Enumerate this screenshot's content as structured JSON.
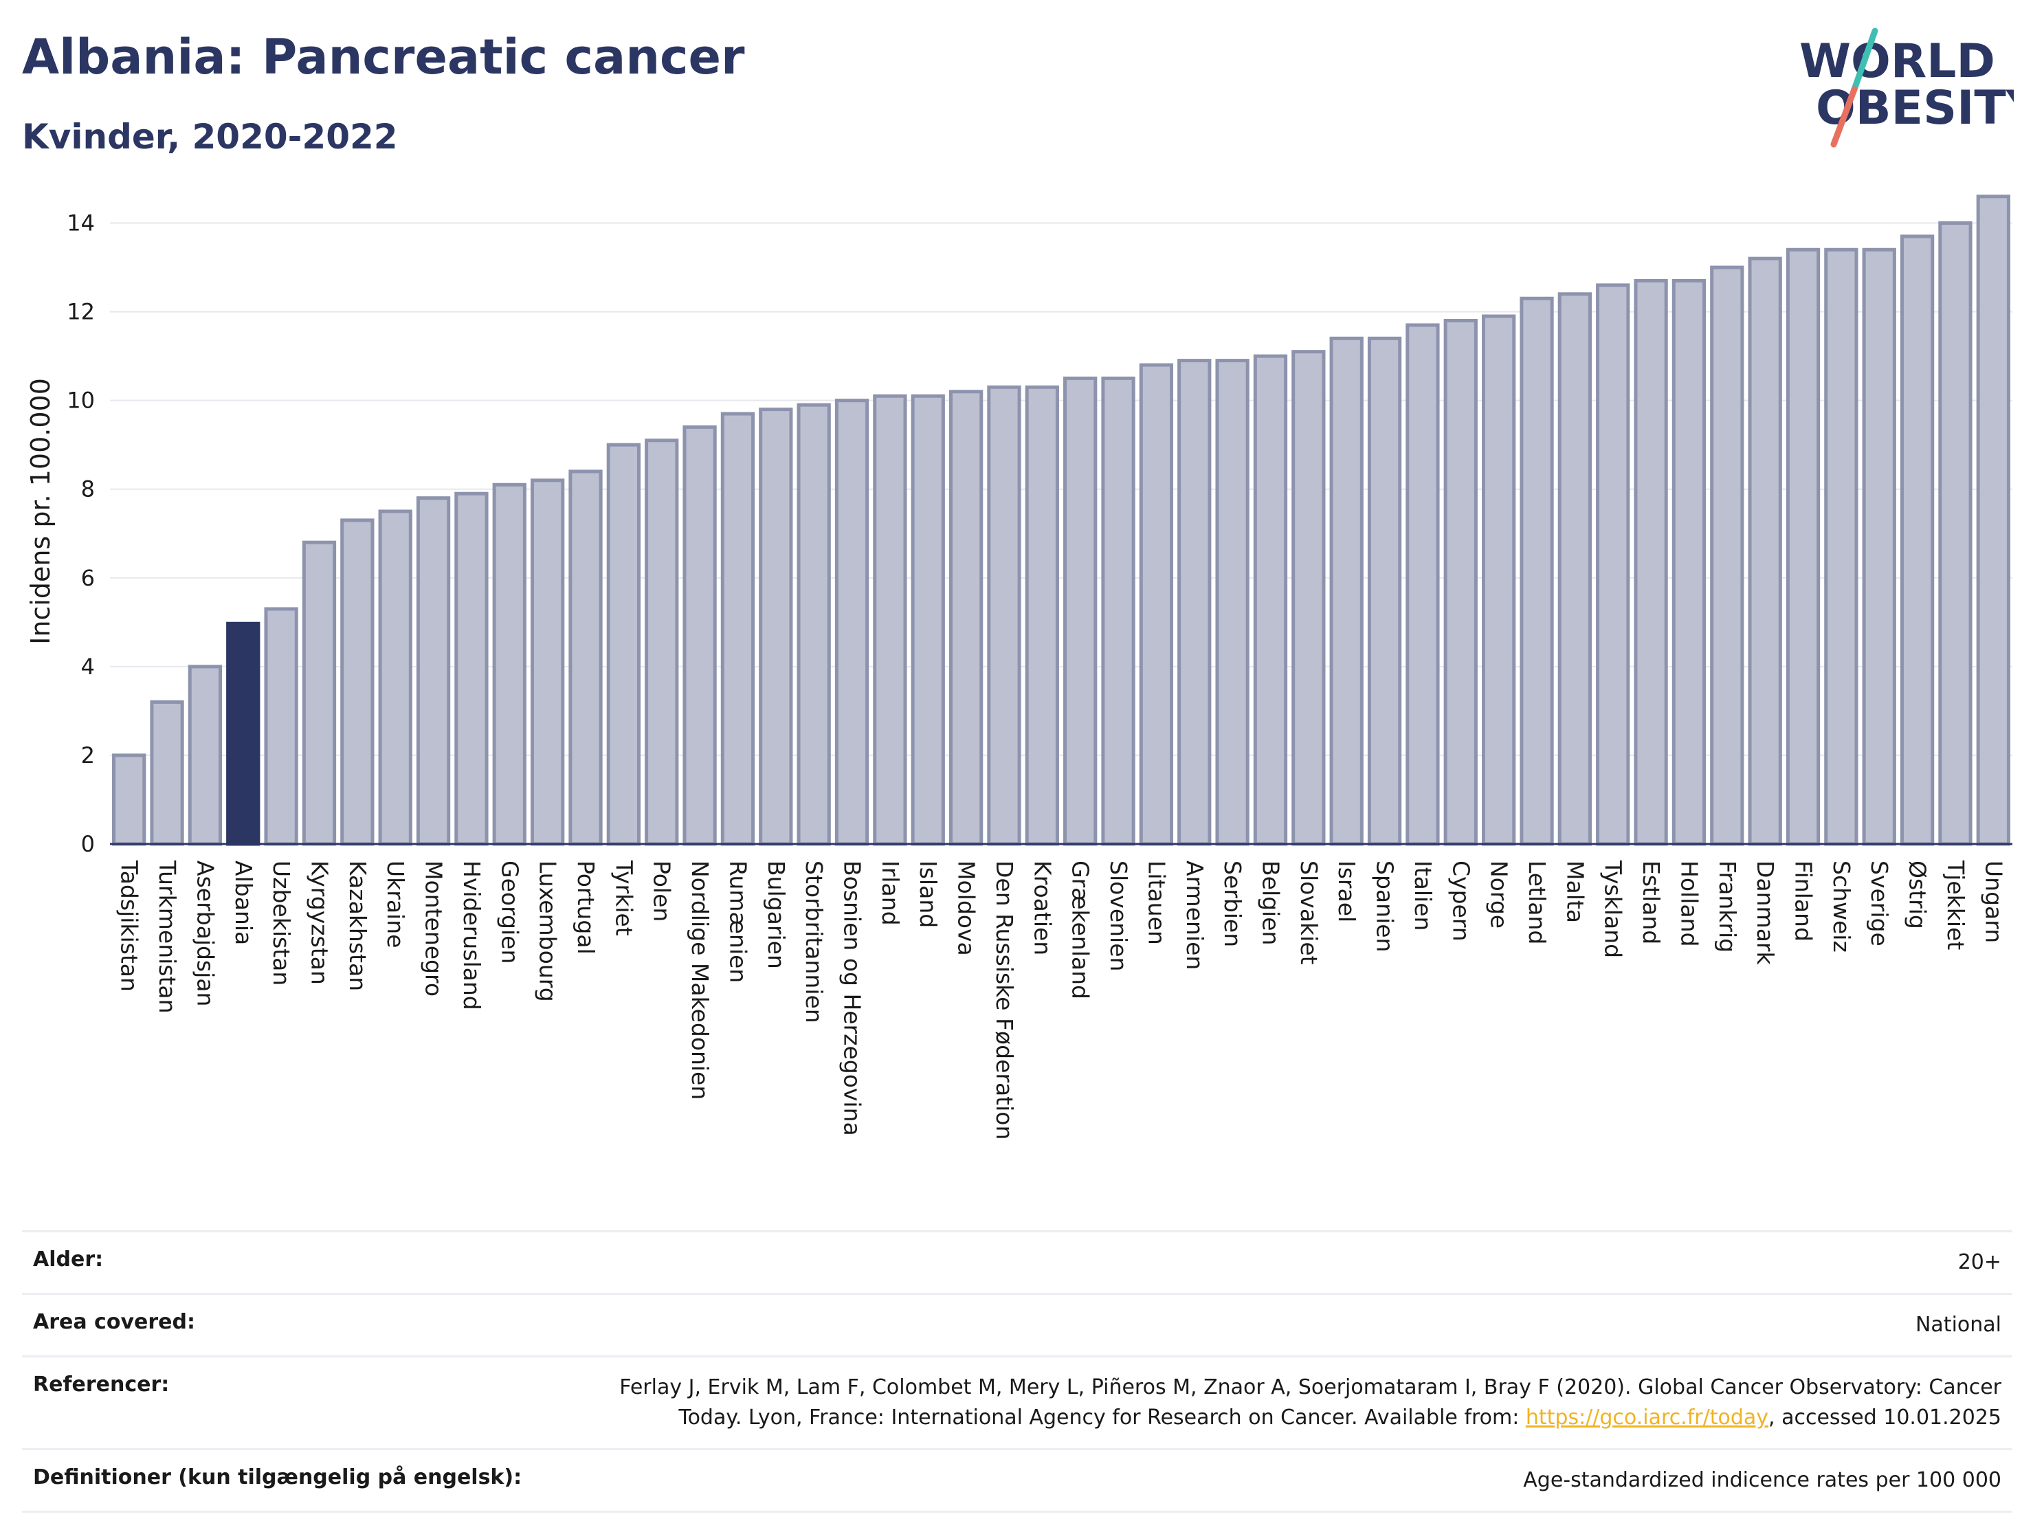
{
  "header": {
    "title": "Albania: Pancreatic cancer",
    "subtitle": "Kvinder, 2020-2022"
  },
  "logo": {
    "line1": "WORLD",
    "line2": "OBESITY",
    "colors": {
      "text": "#2b3663",
      "slash_top": "#3fbfb2",
      "slash_bottom": "#e8705f"
    }
  },
  "colors": {
    "bar": "#bcc0d0",
    "bar_edge": "#8d93ad",
    "highlight": "#2b3663",
    "grid": "#e6e8ee",
    "axis": "#2b3663"
  },
  "chart_data": {
    "type": "bar",
    "ylabel": "Incidens pr. 100.000",
    "ylim": [
      0,
      15
    ],
    "yticks": [
      0,
      2,
      4,
      6,
      8,
      10,
      12,
      14
    ],
    "grid": true,
    "highlight": "Albania",
    "categories": [
      "Tadsjikistan",
      "Turkmenistan",
      "Aserbajdsjan",
      "Albania",
      "Uzbekistan",
      "Kyrgyzstan",
      "Kazakhstan",
      "Ukraine",
      "Montenegro",
      "Hviderusland",
      "Georgien",
      "Luxembourg",
      "Portugal",
      "Tyrkiet",
      "Polen",
      "Nordlige Makedonien",
      "Rumænien",
      "Bulgarien",
      "Storbritannien",
      "Bosnien og Herzegovina",
      "Irland",
      "Island",
      "Moldova",
      "Den Russiske Føderation",
      "Kroatien",
      "Grækenland",
      "Slovenien",
      "Litauen",
      "Armenien",
      "Serbien",
      "Belgien",
      "Slovakiet",
      "Israel",
      "Spanien",
      "Italien",
      "Cypern",
      "Norge",
      "Letland",
      "Malta",
      "Tyskland",
      "Estland",
      "Holland",
      "Frankrig",
      "Danmark",
      "Finland",
      "Schweiz",
      "Sverige",
      "Østrig",
      "Tjekkiet",
      "Ungarn"
    ],
    "values": [
      2.0,
      3.2,
      4.0,
      4.97,
      5.3,
      6.8,
      7.3,
      7.5,
      7.8,
      7.9,
      8.1,
      8.2,
      8.4,
      9.0,
      9.1,
      9.4,
      9.7,
      9.8,
      9.9,
      10.0,
      10.1,
      10.1,
      10.2,
      10.3,
      10.3,
      10.5,
      10.5,
      10.8,
      10.9,
      10.9,
      11.0,
      11.1,
      11.4,
      11.4,
      11.7,
      11.8,
      11.9,
      12.3,
      12.4,
      12.6,
      12.7,
      12.7,
      13.0,
      13.2,
      13.4,
      13.4,
      13.4,
      13.7,
      14.0,
      14.6
    ]
  },
  "meta": {
    "age_label": "Alder:",
    "age_value": "20+",
    "area_label": "Area covered:",
    "area_value": "National",
    "ref_label": "Referencer:",
    "ref_text1": "Ferlay J, Ervik M, Lam F, Colombet M, Mery L, Piñeros M, Znaor A, Soerjomataram I, Bray F (2020). Global Cancer Observatory: Cancer",
    "ref_text2": "Today. Lyon, France: International Agency for Research on Cancer. Available from: ",
    "ref_link": "https://gco.iarc.fr/today",
    "ref_text3": ", accessed 10.01.2025",
    "def_label": "Definitioner (kun tilgængelig på engelsk):",
    "def_value": "Age-standardized indicence rates per 100 000"
  }
}
